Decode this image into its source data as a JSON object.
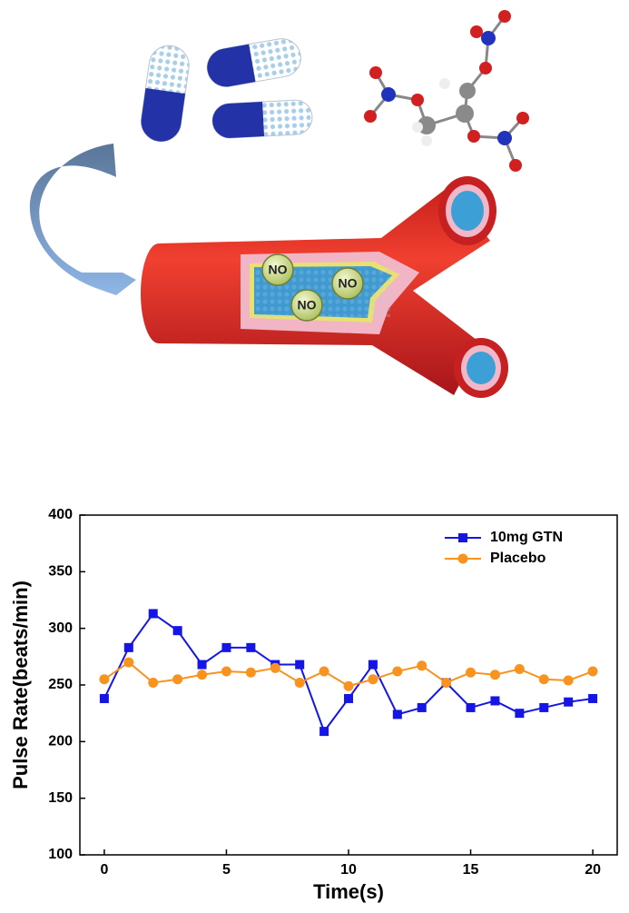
{
  "illustration": {
    "labels": [
      "NO",
      "NO",
      "NO"
    ]
  },
  "chart_data": {
    "type": "line",
    "x": [
      0,
      1,
      2,
      3,
      4,
      5,
      6,
      7,
      8,
      9,
      10,
      11,
      12,
      13,
      14,
      15,
      16,
      17,
      18,
      19,
      20
    ],
    "series": [
      {
        "name": "10mg GTN",
        "color": "#1515e6",
        "marker": "square",
        "values": [
          238,
          283,
          313,
          298,
          268,
          283,
          283,
          268,
          268,
          209,
          238,
          268,
          224,
          230,
          252,
          230,
          236,
          225,
          230,
          235,
          238
        ]
      },
      {
        "name": "Placebo",
        "color": "#f7931e",
        "marker": "circle",
        "values": [
          255,
          270,
          252,
          255,
          259,
          262,
          261,
          265,
          252,
          262,
          249,
          255,
          262,
          267,
          252,
          261,
          259,
          264,
          255,
          254,
          262
        ]
      }
    ],
    "xlabel": "Time(s)",
    "ylabel": "Pulse Rate(beats/min)",
    "xlim": [
      -1,
      21
    ],
    "ylim": [
      100,
      400
    ],
    "xticks": [
      0,
      5,
      10,
      15,
      20
    ],
    "yticks": [
      100,
      150,
      200,
      250,
      300,
      350,
      400
    ],
    "legend": "upper right"
  }
}
